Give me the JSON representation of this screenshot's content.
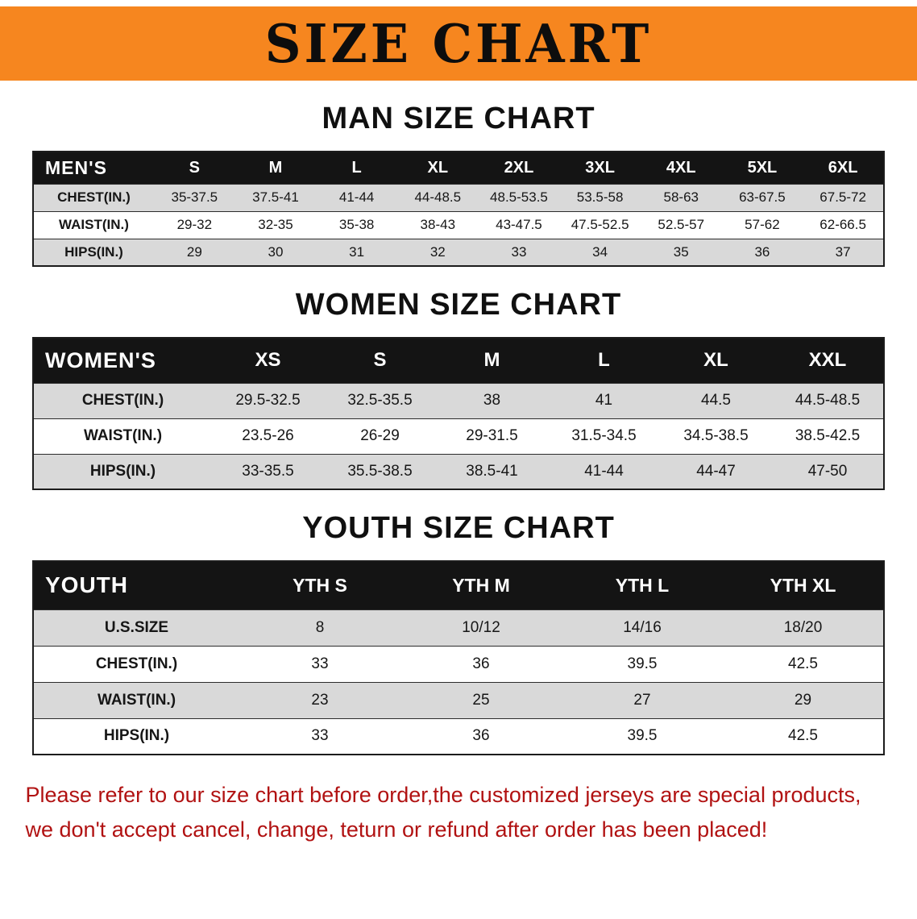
{
  "banner": {
    "title": "SIZE CHART"
  },
  "colors": {
    "banner_bg": "#f6861f",
    "table_header_bg": "#141414",
    "row_alt_gray": "#d9d9d9",
    "footer_red": "#b11212"
  },
  "chart_data": [
    {
      "type": "table",
      "title": "MAN SIZE CHART",
      "corner": "MEN'S",
      "columns": [
        "S",
        "M",
        "L",
        "XL",
        "2XL",
        "3XL",
        "4XL",
        "5XL",
        "6XL"
      ],
      "rows": [
        {
          "label": "CHEST(IN.)",
          "values": [
            "35-37.5",
            "37.5-41",
            "41-44",
            "44-48.5",
            "48.5-53.5",
            "53.5-58",
            "58-63",
            "63-67.5",
            "67.5-72"
          ]
        },
        {
          "label": "WAIST(IN.)",
          "values": [
            "29-32",
            "32-35",
            "35-38",
            "38-43",
            "43-47.5",
            "47.5-52.5",
            "52.5-57",
            "57-62",
            "62-66.5"
          ]
        },
        {
          "label": "HIPS(IN.)",
          "values": [
            "29",
            "30",
            "31",
            "32",
            "33",
            "34",
            "35",
            "36",
            "37"
          ]
        }
      ]
    },
    {
      "type": "table",
      "title": "WOMEN SIZE CHART",
      "corner": "WOMEN'S",
      "columns": [
        "XS",
        "S",
        "M",
        "L",
        "XL",
        "XXL"
      ],
      "rows": [
        {
          "label": "CHEST(IN.)",
          "values": [
            "29.5-32.5",
            "32.5-35.5",
            "38",
            "41",
            "44.5",
            "44.5-48.5"
          ]
        },
        {
          "label": "WAIST(IN.)",
          "values": [
            "23.5-26",
            "26-29",
            "29-31.5",
            "31.5-34.5",
            "34.5-38.5",
            "38.5-42.5"
          ]
        },
        {
          "label": "HIPS(IN.)",
          "values": [
            "33-35.5",
            "35.5-38.5",
            "38.5-41",
            "41-44",
            "44-47",
            "47-50"
          ]
        }
      ]
    },
    {
      "type": "table",
      "title": "YOUTH SIZE CHART",
      "corner": "YOUTH",
      "columns": [
        "YTH S",
        "YTH M",
        "YTH L",
        "YTH XL"
      ],
      "rows": [
        {
          "label": "U.S.SIZE",
          "values": [
            "8",
            "10/12",
            "14/16",
            "18/20"
          ]
        },
        {
          "label": "CHEST(IN.)",
          "values": [
            "33",
            "36",
            "39.5",
            "42.5"
          ]
        },
        {
          "label": "WAIST(IN.)",
          "values": [
            "23",
            "25",
            "27",
            "29"
          ]
        },
        {
          "label": "HIPS(IN.)",
          "values": [
            "33",
            "36",
            "39.5",
            "42.5"
          ]
        }
      ]
    }
  ],
  "footer": {
    "line1": "Please refer to our size chart before order,the customized jerseys are special products,",
    "line2": "we don't accept cancel, change, teturn or refund after order has been placed!"
  }
}
